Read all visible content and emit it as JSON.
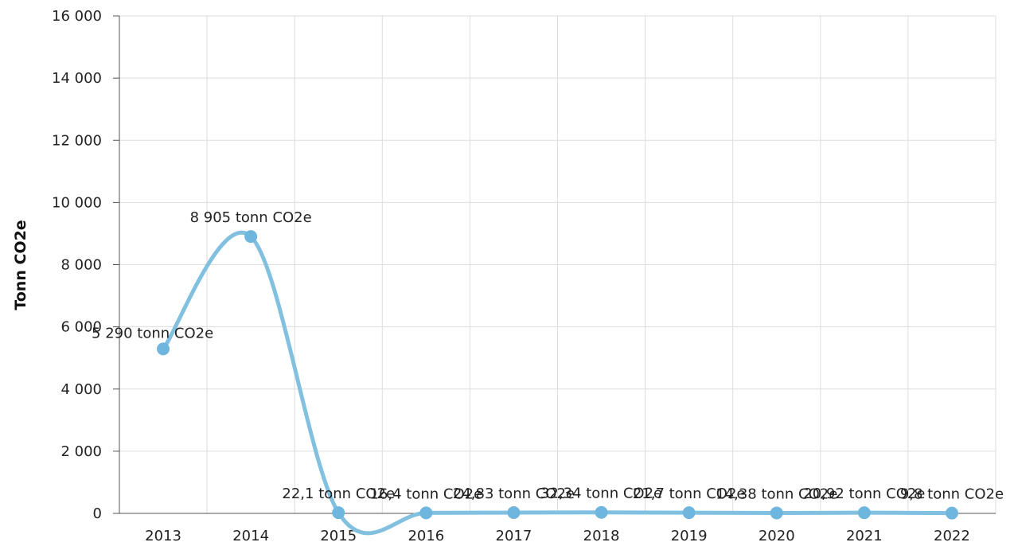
{
  "chart_data": {
    "type": "line",
    "title": "",
    "xlabel": "",
    "ylabel": "Tonn CO2e",
    "categories": [
      "2013",
      "2014",
      "2015",
      "2016",
      "2017",
      "2018",
      "2019",
      "2020",
      "2021",
      "2022"
    ],
    "values": [
      5290,
      8905,
      22.1,
      16.4,
      24.83,
      32.34,
      21.7,
      14.38,
      20.92,
      9.8
    ],
    "data_labels": [
      "5 290 tonn CO2e",
      "8 905 tonn CO2e",
      "22,1 tonn CO2e",
      "16,4 tonn CO2e",
      "24,83 tonn CO2e",
      "32,34 tonn CO2e",
      "21,7 tonn CO2e",
      "14,38 tonn CO2e",
      "20,92 tonn CO2e",
      "9,8 tonn CO2e"
    ],
    "y_ticks": [
      {
        "value": 0,
        "label": "0"
      },
      {
        "value": 2000,
        "label": "2 000"
      },
      {
        "value": 4000,
        "label": "4 000"
      },
      {
        "value": 6000,
        "label": "6 000"
      },
      {
        "value": 8000,
        "label": "8 000"
      },
      {
        "value": 10000,
        "label": "10 000"
      },
      {
        "value": 12000,
        "label": "12 000"
      },
      {
        "value": 14000,
        "label": "14 000"
      },
      {
        "value": 16000,
        "label": "16 000"
      }
    ],
    "ylim": [
      0,
      16000
    ],
    "grid": true,
    "legend": "none",
    "smooth": true,
    "line_color": "#82c0e0",
    "marker_color": "#6fb6df"
  }
}
